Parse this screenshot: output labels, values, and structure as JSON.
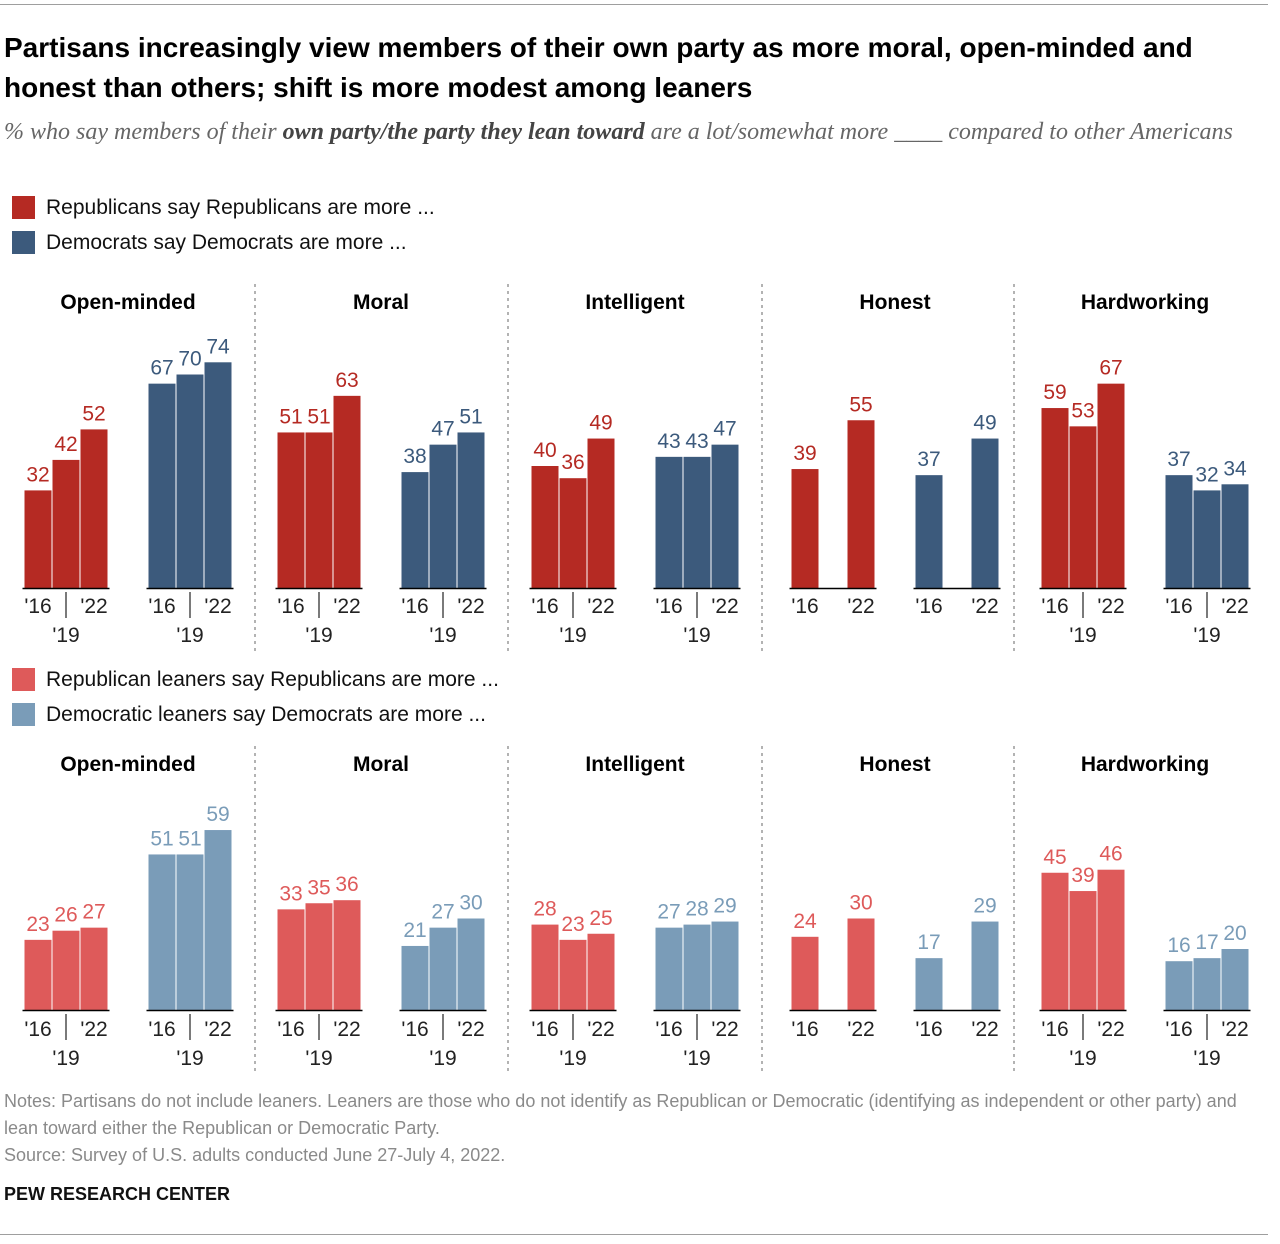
{
  "title": "Partisans increasingly view members of their own party as more moral, open-minded and honest than others; shift is more modest among leaners",
  "subtitle": {
    "before": "% who say members of their ",
    "emphasis": "own party/the party they lean toward",
    "after": " are a lot/somewhat more ____ compared to other Americans"
  },
  "colors": {
    "republican": "#b52a23",
    "democrat": "#3c5a7c",
    "republican_leaner": "#de5a5a",
    "democrat_leaner": "#7a9cb8",
    "divider": "#8a8a8a",
    "axis": "#000000"
  },
  "legend_top": [
    {
      "label": "Republicans say Republicans are more ...",
      "color": "#b52a23"
    },
    {
      "label": "Democrats say Democrats are more ...",
      "color": "#3c5a7c"
    }
  ],
  "legend_bottom": [
    {
      "label": "Republican leaners say Republicans are more ...",
      "color": "#de5a5a"
    },
    {
      "label": "Democratic leaners say Democrats are more ...",
      "color": "#7a9cb8"
    }
  ],
  "chart_data": [
    {
      "type": "bar",
      "name": "Partisans",
      "value_unit": "%",
      "ylim": [
        0,
        80
      ],
      "grid": false,
      "legend_position": "top-left",
      "panels": [
        {
          "title": "Open-minded",
          "groups": [
            {
              "party": "republican",
              "years": [
                "'16",
                "'19",
                "'22"
              ],
              "values": [
                32,
                42,
                52
              ]
            },
            {
              "party": "democrat",
              "years": [
                "'16",
                "'19",
                "'22"
              ],
              "values": [
                67,
                70,
                74
              ]
            }
          ]
        },
        {
          "title": "Moral",
          "groups": [
            {
              "party": "republican",
              "years": [
                "'16",
                "'19",
                "'22"
              ],
              "values": [
                51,
                51,
                63
              ]
            },
            {
              "party": "democrat",
              "years": [
                "'16",
                "'19",
                "'22"
              ],
              "values": [
                38,
                47,
                51
              ]
            }
          ]
        },
        {
          "title": "Intelligent",
          "groups": [
            {
              "party": "republican",
              "years": [
                "'16",
                "'19",
                "'22"
              ],
              "values": [
                40,
                36,
                49
              ]
            },
            {
              "party": "democrat",
              "years": [
                "'16",
                "'19",
                "'22"
              ],
              "values": [
                43,
                43,
                47
              ]
            }
          ]
        },
        {
          "title": "Honest",
          "groups": [
            {
              "party": "republican",
              "years": [
                "'16",
                "'22"
              ],
              "values": [
                39,
                55
              ]
            },
            {
              "party": "democrat",
              "years": [
                "'16",
                "'22"
              ],
              "values": [
                37,
                49
              ]
            }
          ]
        },
        {
          "title": "Hardworking",
          "groups": [
            {
              "party": "republican",
              "years": [
                "'16",
                "'19",
                "'22"
              ],
              "values": [
                59,
                53,
                67
              ]
            },
            {
              "party": "democrat",
              "years": [
                "'16",
                "'19",
                "'22"
              ],
              "values": [
                37,
                32,
                34
              ]
            }
          ]
        }
      ]
    },
    {
      "type": "bar",
      "name": "Leaners",
      "value_unit": "%",
      "ylim": [
        0,
        80
      ],
      "grid": false,
      "legend_position": "top-left",
      "panels": [
        {
          "title": "Open-minded",
          "groups": [
            {
              "party": "republican_leaner",
              "years": [
                "'16",
                "'19",
                "'22"
              ],
              "values": [
                23,
                26,
                27
              ]
            },
            {
              "party": "democrat_leaner",
              "years": [
                "'16",
                "'19",
                "'22"
              ],
              "values": [
                51,
                51,
                59
              ]
            }
          ]
        },
        {
          "title": "Moral",
          "groups": [
            {
              "party": "republican_leaner",
              "years": [
                "'16",
                "'19",
                "'22"
              ],
              "values": [
                33,
                35,
                36
              ]
            },
            {
              "party": "democrat_leaner",
              "years": [
                "'16",
                "'19",
                "'22"
              ],
              "values": [
                21,
                27,
                30
              ]
            }
          ]
        },
        {
          "title": "Intelligent",
          "groups": [
            {
              "party": "republican_leaner",
              "years": [
                "'16",
                "'19",
                "'22"
              ],
              "values": [
                28,
                23,
                25
              ]
            },
            {
              "party": "democrat_leaner",
              "years": [
                "'16",
                "'19",
                "'22"
              ],
              "values": [
                27,
                28,
                29
              ]
            }
          ]
        },
        {
          "title": "Honest",
          "groups": [
            {
              "party": "republican_leaner",
              "years": [
                "'16",
                "'22"
              ],
              "values": [
                24,
                30
              ]
            },
            {
              "party": "democrat_leaner",
              "years": [
                "'16",
                "'22"
              ],
              "values": [
                17,
                29
              ]
            }
          ]
        },
        {
          "title": "Hardworking",
          "groups": [
            {
              "party": "republican_leaner",
              "years": [
                "'16",
                "'19",
                "'22"
              ],
              "values": [
                45,
                39,
                46
              ]
            },
            {
              "party": "democrat_leaner",
              "years": [
                "'16",
                "'19",
                "'22"
              ],
              "values": [
                16,
                17,
                20
              ]
            }
          ]
        }
      ]
    }
  ],
  "notes": "Notes: Partisans do not include leaners. Leaners are those who do not identify as Republican or Democratic (identifying as independent or other party) and lean toward either the Republican or Democratic Party.",
  "source": "Source: Survey of U.S. adults conducted June 27-July 4, 2022.",
  "org": "PEW RESEARCH CENTER"
}
